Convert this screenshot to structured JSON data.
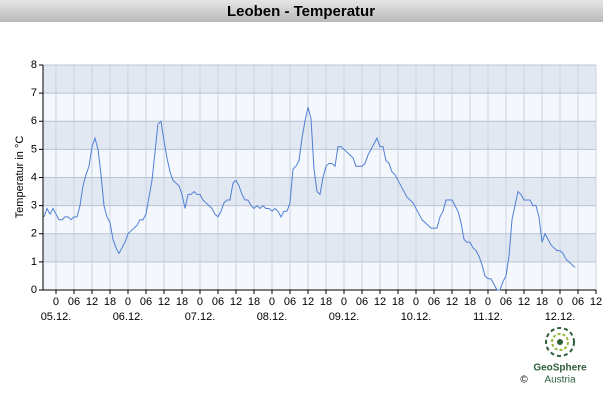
{
  "chart_data": {
    "type": "line",
    "title": "Leoben - Temperatur",
    "y_label": "Temperatur in °C",
    "x": [
      -4,
      -3,
      -2,
      -1,
      0,
      1,
      2,
      3,
      4,
      5,
      6,
      7,
      8,
      9,
      10,
      11,
      12,
      13,
      14,
      15,
      16,
      17,
      18,
      19,
      20,
      21,
      22,
      23,
      24,
      25,
      26,
      27,
      28,
      29,
      30,
      31,
      32,
      33,
      34,
      35,
      36,
      37,
      38,
      39,
      40,
      41,
      42,
      43,
      44,
      45,
      46,
      47,
      48,
      49,
      50,
      51,
      52,
      53,
      54,
      55,
      56,
      57,
      58,
      59,
      60,
      61,
      62,
      63,
      64,
      65,
      66,
      67,
      68,
      69,
      70,
      71,
      72,
      73,
      74,
      75,
      76,
      77,
      78,
      79,
      80,
      81,
      82,
      83,
      84,
      85,
      86,
      87,
      88,
      89,
      90,
      91,
      92,
      93,
      94,
      95,
      96,
      97,
      98,
      99,
      100,
      101,
      102,
      103,
      104,
      105,
      106,
      107,
      108,
      109,
      110,
      111,
      112,
      113,
      114,
      115,
      116,
      117,
      118,
      119,
      120,
      121,
      122,
      123,
      124,
      125,
      126,
      127,
      128,
      129,
      130,
      131,
      132,
      133,
      134,
      135,
      136,
      137,
      138,
      139,
      140,
      141,
      142,
      143,
      144,
      145,
      146,
      147,
      148,
      149,
      150,
      151,
      152,
      153,
      154,
      155,
      156,
      157,
      158,
      159,
      160,
      161,
      162,
      163,
      164,
      165,
      166,
      167,
      168,
      169,
      170,
      171,
      172,
      173
    ],
    "series": [
      {
        "name": "Temperatur",
        "color": "#4f7fd6",
        "values": [
          2.6,
          2.9,
          2.7,
          2.9,
          2.7,
          2.5,
          2.5,
          2.6,
          2.6,
          2.5,
          2.6,
          2.6,
          3.0,
          3.7,
          4.1,
          4.4,
          5.1,
          5.4,
          5.0,
          4.1,
          3.0,
          2.6,
          2.4,
          1.8,
          1.5,
          1.3,
          1.5,
          1.7,
          2.0,
          2.1,
          2.2,
          2.3,
          2.5,
          2.5,
          2.7,
          3.3,
          3.9,
          4.9,
          5.9,
          6.0,
          5.3,
          4.7,
          4.2,
          3.9,
          3.8,
          3.7,
          3.4,
          2.9,
          3.4,
          3.4,
          3.5,
          3.4,
          3.4,
          3.2,
          3.1,
          3.0,
          2.9,
          2.7,
          2.6,
          2.8,
          3.1,
          3.2,
          3.2,
          3.8,
          3.9,
          3.7,
          3.4,
          3.2,
          3.2,
          3.0,
          2.9,
          3.0,
          2.9,
          3.0,
          2.9,
          2.9,
          2.8,
          2.9,
          2.8,
          2.6,
          2.8,
          2.8,
          3.1,
          4.3,
          4.4,
          4.6,
          5.4,
          6.0,
          6.5,
          6.1,
          4.3,
          3.5,
          3.4,
          4.0,
          4.4,
          4.5,
          4.5,
          4.4,
          5.1,
          5.1,
          5.0,
          4.9,
          4.8,
          4.7,
          4.4,
          4.4,
          4.4,
          4.5,
          4.8,
          5.0,
          5.2,
          5.4,
          5.1,
          5.1,
          4.6,
          4.5,
          4.2,
          4.1,
          3.9,
          3.7,
          3.5,
          3.3,
          3.2,
          3.1,
          2.9,
          2.7,
          2.5,
          2.4,
          2.3,
          2.2,
          2.2,
          2.2,
          2.6,
          2.8,
          3.2,
          3.2,
          3.2,
          3.0,
          2.8,
          2.4,
          1.8,
          1.7,
          1.7,
          1.5,
          1.4,
          1.2,
          0.9,
          0.5,
          0.4,
          0.4,
          0.2,
          0.0,
          0.0,
          0.3,
          0.5,
          1.2,
          2.5,
          3.0,
          3.5,
          3.4,
          3.2,
          3.2,
          3.2,
          3.0,
          3.0,
          2.6,
          1.7,
          2.0,
          1.8,
          1.6,
          1.5,
          1.4,
          1.4,
          1.3,
          1.1,
          1.0,
          0.9,
          0.8
        ]
      }
    ],
    "xlim": [
      -4.33,
      180
    ],
    "ylim": [
      0,
      8
    ],
    "yticks": [
      0,
      1,
      2,
      3,
      4,
      5,
      6,
      7,
      8
    ],
    "xticks": [
      {
        "value": 0,
        "label": "0"
      },
      {
        "value": 6,
        "label": "06"
      },
      {
        "value": 12,
        "label": "12"
      },
      {
        "value": 18,
        "label": "18"
      },
      {
        "value": 24,
        "label": "0"
      },
      {
        "value": 30,
        "label": "06"
      },
      {
        "value": 36,
        "label": "12"
      },
      {
        "value": 42,
        "label": "18"
      },
      {
        "value": 48,
        "label": "0"
      },
      {
        "value": 54,
        "label": "06"
      },
      {
        "value": 60,
        "label": "12"
      },
      {
        "value": 66,
        "label": "18"
      },
      {
        "value": 72,
        "label": "0"
      },
      {
        "value": 78,
        "label": "06"
      },
      {
        "value": 84,
        "label": "12"
      },
      {
        "value": 90,
        "label": "18"
      },
      {
        "value": 96,
        "label": "0"
      },
      {
        "value": 102,
        "label": "06"
      },
      {
        "value": 108,
        "label": "12"
      },
      {
        "value": 114,
        "label": "18"
      },
      {
        "value": 120,
        "label": "0"
      },
      {
        "value": 126,
        "label": "06"
      },
      {
        "value": 132,
        "label": "12"
      },
      {
        "value": 138,
        "label": "18"
      },
      {
        "value": 144,
        "label": "0"
      },
      {
        "value": 150,
        "label": "06"
      },
      {
        "value": 156,
        "label": "12"
      },
      {
        "value": 162,
        "label": "18"
      },
      {
        "value": 168,
        "label": "0"
      },
      {
        "value": 174,
        "label": "06"
      },
      {
        "value": 180,
        "label": "12"
      }
    ],
    "date_ticks": [
      {
        "value": 0,
        "label": "05.12."
      },
      {
        "value": 24,
        "label": "06.12."
      },
      {
        "value": 48,
        "label": "07.12."
      },
      {
        "value": 72,
        "label": "08.12."
      },
      {
        "value": 96,
        "label": "09.12."
      },
      {
        "value": 120,
        "label": "10.12."
      },
      {
        "value": 144,
        "label": "11.12."
      },
      {
        "value": 168,
        "label": "12.12."
      }
    ],
    "grid": true
  },
  "logo": {
    "name": "GeoSphere",
    "sub": "Austria",
    "copyright": "©"
  }
}
